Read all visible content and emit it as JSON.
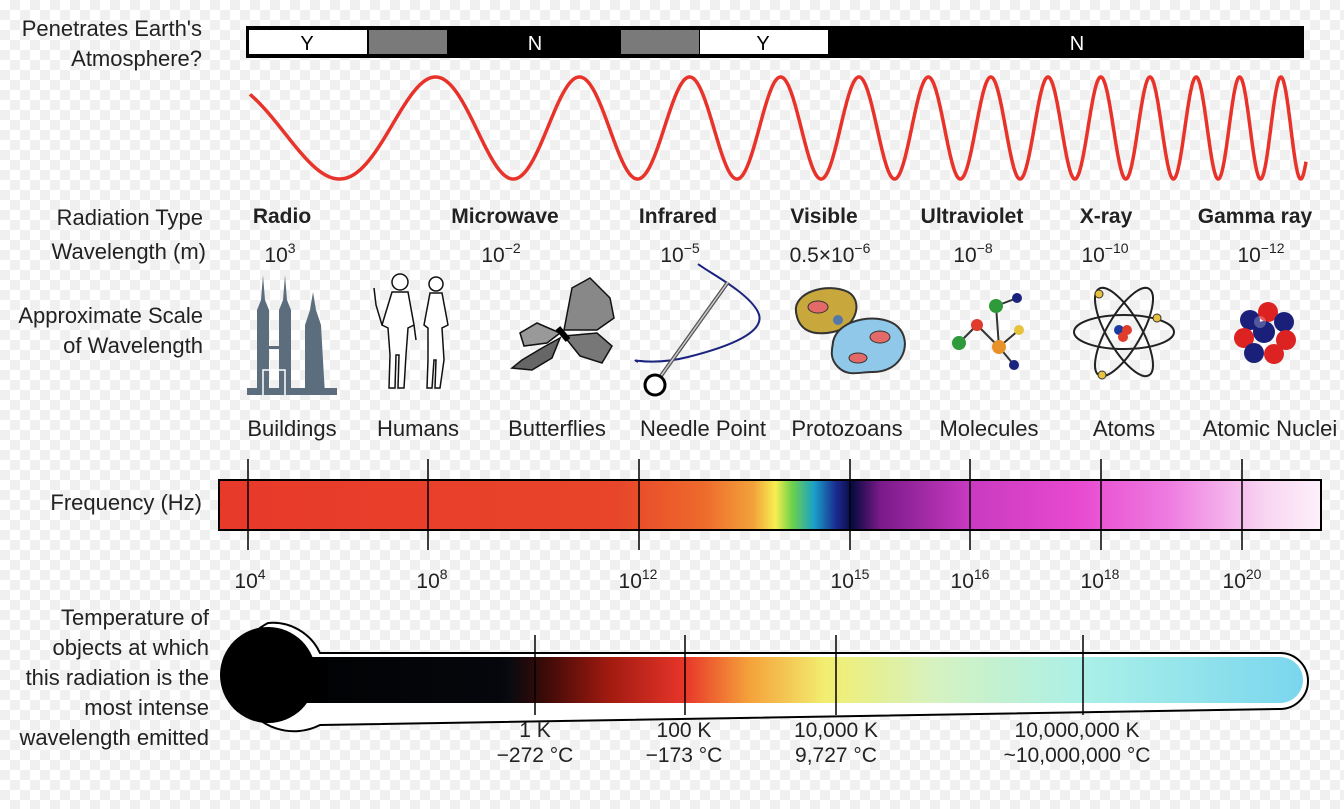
{
  "labels": {
    "penetrates": "Penetrates Earth's\nAtmosphere?",
    "radiation_type": "Radiation Type",
    "wavelength": "Wavelength (m)",
    "approx_scale": "Approximate Scale\nof Wavelength",
    "frequency": "Frequency (Hz)",
    "temperature": "Temperature of\nobjects at which\nthis radiation is the\nmost intense\nwavelength emitted"
  },
  "atmosphere": [
    "Y",
    "N",
    "Y",
    "N"
  ],
  "radiation": [
    {
      "name": "Radio",
      "wl_base": "10",
      "wl_exp": "3"
    },
    {
      "name": "Microwave",
      "wl_base": "10",
      "wl_exp": "−2"
    },
    {
      "name": "Infrared",
      "wl_base": "10",
      "wl_exp": "−5"
    },
    {
      "name": "Visible",
      "wl_base": "0.5×10",
      "wl_exp": "−6"
    },
    {
      "name": "Ultraviolet",
      "wl_base": "10",
      "wl_exp": "−8"
    },
    {
      "name": "X-ray",
      "wl_base": "10",
      "wl_exp": "−10"
    },
    {
      "name": "Gamma ray",
      "wl_base": "10",
      "wl_exp": "−12"
    }
  ],
  "scales": [
    {
      "label": "Buildings",
      "icon": "buildings-icon"
    },
    {
      "label": "Humans",
      "icon": "humans-icon"
    },
    {
      "label": "Butterflies",
      "icon": "butterfly-icon"
    },
    {
      "label": "Needle Point",
      "icon": "needle-icon"
    },
    {
      "label": "Protozoans",
      "icon": "protozoan-icon"
    },
    {
      "label": "Molecules",
      "icon": "molecule-icon"
    },
    {
      "label": "Atoms",
      "icon": "atom-icon"
    },
    {
      "label": "Atomic Nuclei",
      "icon": "nucleus-icon"
    }
  ],
  "frequencies": [
    {
      "base": "10",
      "exp": "4"
    },
    {
      "base": "10",
      "exp": "8"
    },
    {
      "base": "10",
      "exp": "12"
    },
    {
      "base": "10",
      "exp": "15"
    },
    {
      "base": "10",
      "exp": "16"
    },
    {
      "base": "10",
      "exp": "18"
    },
    {
      "base": "10",
      "exp": "20"
    }
  ],
  "temperatures": [
    {
      "k": "1 K",
      "c": "−272 °C"
    },
    {
      "k": "100 K",
      "c": "−173 °C"
    },
    {
      "k": "10,000 K",
      "c": "9,727 °C"
    },
    {
      "k": "10,000,000 K",
      "c": "~10,000,000 °C"
    }
  ],
  "colors": {
    "wave": "#e8332a",
    "bar_outline": "#000000"
  }
}
